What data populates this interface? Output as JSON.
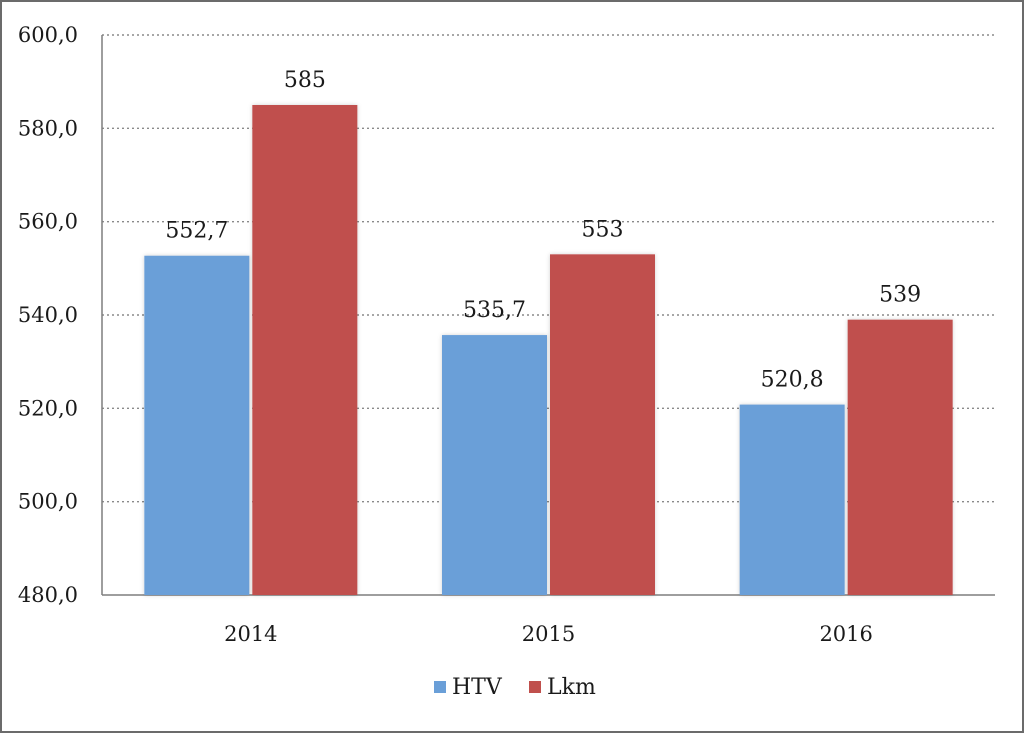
{
  "chart_data": {
    "type": "bar",
    "categories": [
      "2014",
      "2015",
      "2016"
    ],
    "series": [
      {
        "name": "HTV",
        "values": [
          552.7,
          535.7,
          520.8
        ],
        "labels": [
          "552,7",
          "535,7",
          "520,8"
        ],
        "color": "#6a9fd8"
      },
      {
        "name": "Lkm",
        "values": [
          585,
          553,
          539
        ],
        "labels": [
          "585",
          "553",
          "539"
        ],
        "color": "#c0504d"
      }
    ],
    "title": "",
    "xlabel": "",
    "ylabel": "",
    "ylim": [
      480,
      600
    ],
    "yticks": [
      480,
      500,
      520,
      540,
      560,
      580,
      600
    ],
    "ytick_labels": [
      "480,0",
      "500,0",
      "520,0",
      "540,0",
      "560,0",
      "580,0",
      "600,0"
    ],
    "grid": "horizontal-dotted",
    "legend": "bottom-center"
  }
}
